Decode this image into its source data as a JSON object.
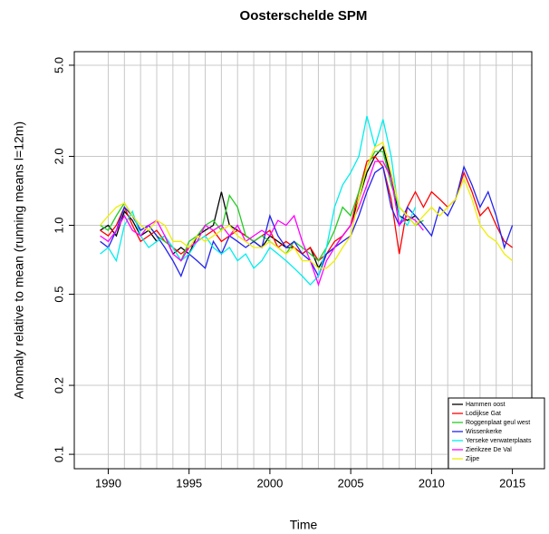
{
  "chart_data": {
    "type": "line",
    "title": "Oosterschelde SPM",
    "xlabel": "Time",
    "ylabel": "Anomaly relative to mean (running means l=12m)",
    "log_y": true,
    "grid": true,
    "legend": "bottomright",
    "xlim": [
      1987.9,
      2016.2
    ],
    "ylim": [
      0.0865,
      5.73
    ],
    "xticks": [
      1990,
      1995,
      2000,
      2005,
      2010,
      2015
    ],
    "xgrid": [
      1990,
      1991,
      1992,
      1993,
      1994,
      1995,
      1996,
      1997,
      1998,
      1999,
      2000,
      2001,
      2002,
      2003,
      2004,
      2005,
      2006,
      2007,
      2008,
      2009,
      2010,
      2011,
      2012,
      2013,
      2014,
      2015
    ],
    "yticks": [
      0.1,
      0.2,
      0.5,
      {
        "value": 1,
        "label": "1.0"
      },
      {
        "value": 2,
        "label": "2.0"
      },
      {
        "value": 5,
        "label": "5.0"
      }
    ],
    "x": [
      1989.5,
      1990,
      1990.5,
      1991,
      1991.5,
      1992,
      1992.5,
      1993,
      1993.5,
      1994,
      1994.5,
      1995,
      1995.5,
      1996,
      1996.5,
      1997,
      1997.5,
      1998,
      1998.5,
      1999,
      1999.5,
      2000,
      2000.5,
      2001,
      2001.5,
      2002,
      2002.5,
      2003,
      2003.5,
      2004,
      2004.5,
      2005,
      2005.5,
      2006,
      2006.5,
      2007,
      2007.5,
      2008,
      2008.5,
      2009,
      2009.5,
      2010,
      2010.5,
      2011,
      2011.5,
      2012,
      2012.5,
      2013,
      2013.5,
      2014,
      2014.5,
      2015
    ],
    "series": [
      {
        "name": "Hammen oost",
        "color": "#000000",
        "values": [
          0.95,
          1.0,
          0.9,
          1.15,
          1.05,
          0.9,
          0.95,
          0.85,
          0.9,
          0.75,
          0.8,
          0.75,
          0.9,
          0.95,
          1.0,
          1.4,
          1.0,
          0.95,
          0.9,
          0.85,
          0.8,
          0.9,
          0.85,
          0.8,
          0.8,
          0.75,
          0.8,
          0.65,
          0.75,
          0.8,
          0.9,
          1.0,
          1.3,
          1.7,
          2.0,
          2.2,
          1.6,
          1.1,
          1.05,
          1.1,
          1.0,
          null,
          null,
          null,
          null,
          null,
          null,
          null,
          null,
          null,
          null,
          null
        ]
      },
      {
        "name": "Lodijkse Gat",
        "color": "#ff0000",
        "values": [
          0.95,
          0.9,
          1.0,
          1.2,
          1.0,
          0.85,
          0.9,
          0.95,
          0.85,
          0.8,
          0.75,
          0.8,
          0.85,
          0.9,
          0.95,
          0.85,
          0.9,
          0.95,
          0.9,
          0.85,
          0.9,
          0.95,
          0.8,
          0.85,
          0.8,
          0.75,
          0.8,
          0.7,
          0.75,
          0.85,
          0.9,
          1.0,
          1.4,
          1.9,
          2.0,
          1.8,
          1.3,
          0.75,
          1.2,
          1.4,
          1.2,
          1.4,
          1.3,
          1.2,
          1.3,
          1.7,
          1.4,
          1.1,
          1.2,
          1.0,
          0.85,
          0.8
        ]
      },
      {
        "name": "Roggenplaat geul west",
        "color": "#22cc22",
        "values": [
          1.0,
          0.95,
          1.1,
          1.25,
          1.1,
          0.95,
          1.0,
          0.9,
          0.85,
          0.8,
          0.7,
          0.85,
          0.9,
          1.0,
          1.05,
          0.95,
          1.35,
          1.2,
          0.9,
          0.85,
          0.9,
          0.85,
          0.8,
          0.75,
          0.85,
          0.8,
          0.75,
          0.7,
          0.8,
          0.95,
          1.2,
          1.1,
          1.4,
          1.8,
          2.1,
          2.1,
          1.5,
          1.2,
          1.1,
          1.0,
          1.05,
          null,
          null,
          null,
          null,
          null,
          null,
          null,
          null,
          null,
          null,
          null
        ]
      },
      {
        "name": "Wissenkerke",
        "color": "#2222ee",
        "values": [
          0.85,
          0.8,
          0.95,
          1.2,
          1.1,
          0.95,
          1.0,
          0.9,
          0.8,
          0.7,
          0.6,
          0.75,
          0.7,
          0.65,
          0.85,
          0.75,
          0.9,
          0.85,
          0.8,
          0.85,
          0.8,
          1.1,
          0.9,
          0.8,
          0.85,
          0.75,
          0.7,
          0.6,
          0.75,
          0.8,
          0.85,
          0.9,
          1.1,
          1.4,
          1.7,
          1.8,
          1.2,
          1.0,
          1.2,
          1.1,
          1.0,
          0.9,
          1.2,
          1.1,
          1.3,
          1.8,
          1.5,
          1.2,
          1.4,
          1.1,
          0.8,
          1.0
        ]
      },
      {
        "name": "Yerseke verwaterplaats",
        "color": "#00eeee",
        "values": [
          0.75,
          0.8,
          0.7,
          1.0,
          1.15,
          0.9,
          0.8,
          0.85,
          0.9,
          0.8,
          0.7,
          0.75,
          0.85,
          0.9,
          0.8,
          0.75,
          0.8,
          0.7,
          0.75,
          0.65,
          0.7,
          0.8,
          0.75,
          0.7,
          0.65,
          0.6,
          0.55,
          0.6,
          0.8,
          1.2,
          1.5,
          1.7,
          2.0,
          3.0,
          2.2,
          2.9,
          2.0,
          1.1,
          1.0,
          1.2,
          null,
          null,
          null,
          null,
          null,
          null,
          null,
          null,
          null,
          null,
          null,
          null
        ]
      },
      {
        "name": "Zierikzee De Val",
        "color": "#ff00ff",
        "values": [
          0.9,
          0.85,
          0.95,
          1.1,
          0.95,
          0.9,
          1.0,
          1.05,
          0.9,
          0.75,
          0.7,
          0.8,
          0.85,
          1.0,
          0.95,
          1.0,
          0.9,
          1.0,
          0.85,
          0.9,
          0.95,
          0.9,
          1.05,
          1.0,
          1.1,
          0.85,
          0.7,
          0.55,
          0.7,
          0.8,
          0.9,
          1.0,
          1.2,
          1.5,
          1.9,
          1.9,
          1.6,
          1.0,
          1.1,
          1.05,
          0.95,
          null,
          null,
          null,
          null,
          null,
          null,
          null,
          null,
          null,
          null,
          null
        ]
      },
      {
        "name": "Zijpe",
        "color": "#eeee00",
        "values": [
          1.0,
          1.1,
          1.2,
          1.25,
          1.1,
          1.0,
          0.95,
          1.05,
          1.0,
          0.85,
          0.85,
          0.8,
          0.9,
          0.85,
          0.9,
          0.95,
          1.0,
          0.9,
          0.85,
          0.8,
          0.8,
          0.85,
          0.8,
          0.75,
          0.8,
          0.7,
          0.7,
          0.65,
          0.65,
          0.7,
          0.8,
          0.9,
          1.3,
          1.8,
          2.2,
          2.3,
          1.7,
          1.2,
          1.1,
          1.0,
          1.1,
          1.2,
          1.1,
          1.2,
          1.3,
          1.6,
          1.3,
          1.0,
          0.9,
          0.85,
          0.75,
          0.7
        ]
      }
    ]
  }
}
